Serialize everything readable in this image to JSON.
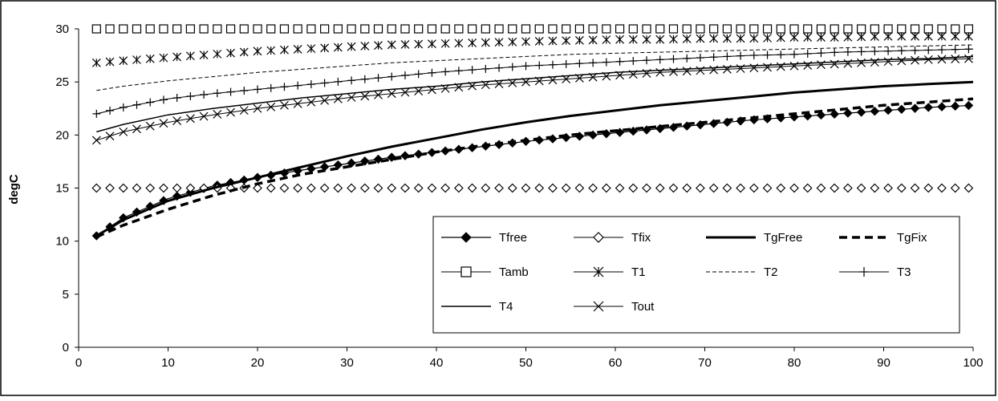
{
  "chart_data": {
    "type": "line",
    "title": "",
    "xlabel": "",
    "ylabel": "degC",
    "xlim": [
      0,
      100
    ],
    "ylim": [
      0,
      30
    ],
    "xticks": [
      0,
      10,
      20,
      30,
      40,
      50,
      60,
      70,
      80,
      90,
      100
    ],
    "yticks": [
      0,
      5,
      10,
      15,
      20,
      25,
      30
    ],
    "grid": false,
    "legend_position": "bottom-right",
    "series": [
      {
        "name": "Tfree",
        "style": "line-filled-diamond",
        "color": "#000000",
        "x": [
          2,
          5,
          10,
          15,
          20,
          25,
          30,
          35,
          40,
          45,
          50,
          55,
          60,
          65,
          70,
          75,
          80,
          85,
          90,
          95,
          100
        ],
        "y": [
          10.5,
          12.2,
          14.0,
          15.2,
          16.0,
          16.7,
          17.3,
          17.9,
          18.4,
          18.9,
          19.4,
          19.8,
          20.2,
          20.6,
          21.0,
          21.4,
          21.7,
          22.0,
          22.3,
          22.6,
          22.8
        ]
      },
      {
        "name": "Tfix",
        "style": "open-diamond-markers",
        "color": "#000000",
        "x": [
          2,
          5,
          10,
          15,
          20,
          25,
          30,
          35,
          40,
          45,
          50,
          55,
          60,
          65,
          70,
          75,
          80,
          85,
          90,
          95,
          100
        ],
        "y": [
          15,
          15,
          15,
          15,
          15,
          15,
          15,
          15,
          15,
          15,
          15,
          15,
          15,
          15,
          15,
          15,
          15,
          15,
          15,
          15,
          15
        ]
      },
      {
        "name": "TgFree",
        "style": "thick-solid",
        "color": "#000000",
        "x": [
          2,
          5,
          10,
          15,
          20,
          25,
          30,
          35,
          40,
          45,
          50,
          55,
          60,
          65,
          70,
          75,
          80,
          85,
          90,
          95,
          100
        ],
        "y": [
          10.5,
          12.0,
          13.8,
          15.0,
          16.0,
          17.0,
          18.0,
          18.9,
          19.7,
          20.5,
          21.2,
          21.8,
          22.3,
          22.8,
          23.2,
          23.6,
          24.0,
          24.3,
          24.6,
          24.8,
          25.0
        ]
      },
      {
        "name": "TgFix",
        "style": "thick-dashed",
        "color": "#000000",
        "x": [
          2,
          5,
          10,
          15,
          20,
          25,
          30,
          35,
          40,
          45,
          50,
          55,
          60,
          65,
          70,
          75,
          80,
          85,
          90,
          95,
          100
        ],
        "y": [
          10.4,
          11.5,
          13.0,
          14.3,
          15.4,
          16.3,
          17.0,
          17.7,
          18.4,
          19.0,
          19.5,
          20.0,
          20.4,
          20.8,
          21.2,
          21.6,
          22.0,
          22.4,
          22.8,
          23.1,
          23.4
        ]
      },
      {
        "name": "Tamb",
        "style": "open-square-markers",
        "color": "#000000",
        "x": [
          2,
          5,
          10,
          15,
          20,
          25,
          30,
          35,
          40,
          45,
          50,
          55,
          60,
          65,
          70,
          75,
          80,
          85,
          90,
          95,
          100
        ],
        "y": [
          30,
          30,
          30,
          30,
          30,
          30,
          30,
          30,
          30,
          30,
          30,
          30,
          30,
          30,
          30,
          30,
          30,
          30,
          30,
          30,
          30
        ]
      },
      {
        "name": "T1",
        "style": "star-markers",
        "color": "#000000",
        "x": [
          2,
          5,
          10,
          15,
          20,
          25,
          30,
          35,
          40,
          45,
          50,
          55,
          60,
          65,
          70,
          75,
          80,
          85,
          90,
          95,
          100
        ],
        "y": [
          26.8,
          27.0,
          27.3,
          27.6,
          27.9,
          28.1,
          28.3,
          28.5,
          28.6,
          28.7,
          28.8,
          28.9,
          29.0,
          29.0,
          29.1,
          29.1,
          29.2,
          29.2,
          29.3,
          29.3,
          29.3
        ]
      },
      {
        "name": "T2",
        "style": "thin-dashed",
        "color": "#000000",
        "x": [
          2,
          5,
          10,
          15,
          20,
          25,
          30,
          35,
          40,
          45,
          50,
          55,
          60,
          65,
          70,
          75,
          80,
          85,
          90,
          95,
          100
        ],
        "y": [
          24.2,
          24.6,
          25.1,
          25.5,
          25.9,
          26.2,
          26.5,
          26.8,
          27.0,
          27.2,
          27.4,
          27.6,
          27.7,
          27.8,
          27.9,
          28.0,
          28.1,
          28.2,
          28.3,
          28.4,
          28.5
        ]
      },
      {
        "name": "T3",
        "style": "plus-markers",
        "color": "#000000",
        "x": [
          2,
          5,
          10,
          15,
          20,
          25,
          30,
          35,
          40,
          45,
          50,
          55,
          60,
          65,
          70,
          75,
          80,
          85,
          90,
          95,
          100
        ],
        "y": [
          22.0,
          22.6,
          23.4,
          23.9,
          24.3,
          24.7,
          25.1,
          25.5,
          25.9,
          26.2,
          26.5,
          26.7,
          26.9,
          27.1,
          27.3,
          27.5,
          27.6,
          27.8,
          27.9,
          28.0,
          28.1
        ]
      },
      {
        "name": "T4",
        "style": "thin-solid",
        "color": "#000000",
        "x": [
          2,
          5,
          10,
          15,
          20,
          25,
          30,
          35,
          40,
          45,
          50,
          55,
          60,
          65,
          70,
          75,
          80,
          85,
          90,
          95,
          100
        ],
        "y": [
          20.3,
          21.0,
          21.9,
          22.5,
          23.0,
          23.5,
          23.9,
          24.3,
          24.6,
          25.0,
          25.3,
          25.6,
          25.9,
          26.1,
          26.3,
          26.5,
          26.7,
          26.9,
          27.1,
          27.2,
          27.4
        ]
      },
      {
        "name": "Tout",
        "style": "x-markers",
        "color": "#000000",
        "x": [
          2,
          5,
          10,
          15,
          20,
          25,
          30,
          35,
          40,
          45,
          50,
          55,
          60,
          65,
          70,
          75,
          80,
          85,
          90,
          95,
          100
        ],
        "y": [
          19.5,
          20.3,
          21.2,
          21.9,
          22.5,
          23.0,
          23.5,
          23.9,
          24.3,
          24.7,
          25.0,
          25.3,
          25.6,
          25.9,
          26.1,
          26.3,
          26.5,
          26.7,
          26.9,
          27.1,
          27.2
        ]
      }
    ]
  }
}
